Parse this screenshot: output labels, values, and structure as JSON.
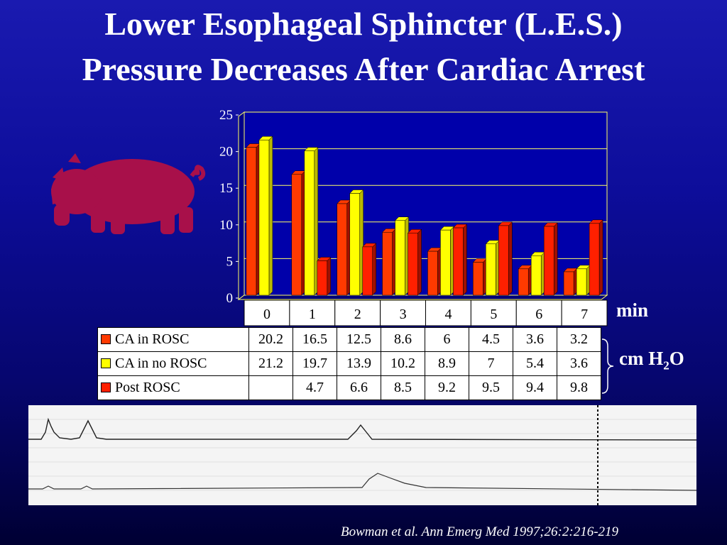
{
  "slide": {
    "title_line1": "Lower Esophageal Sphincter (L.E.S.)",
    "title_line2": "Pressure Decreases After Cardiac Arrest",
    "citation": "Bowman et al. Ann Emerg Med 1997;26:2:216-219",
    "unit_x": "min",
    "unit_y_prefix": "cm H",
    "unit_y_sub": "2",
    "unit_y_suffix": "O"
  },
  "chart_data": {
    "type": "bar",
    "categories": [
      "0",
      "1",
      "2",
      "3",
      "4",
      "5",
      "6",
      "7"
    ],
    "y_ticks": [
      "0",
      "5",
      "10",
      "15",
      "20",
      "25"
    ],
    "ylim": [
      0,
      25
    ],
    "grid": true,
    "legend": "table-below",
    "series": [
      {
        "name": "CA in ROSC",
        "color": "#ff3a00",
        "values": [
          20.2,
          16.5,
          12.5,
          8.6,
          6,
          4.5,
          3.6,
          3.2
        ]
      },
      {
        "name": "CA in no ROSC",
        "color": "#ffff00",
        "values": [
          21.2,
          19.7,
          13.9,
          10.2,
          8.9,
          7,
          5.4,
          3.6
        ]
      },
      {
        "name": "Post ROSC",
        "color": "#ff2000",
        "values": [
          null,
          4.7,
          6.6,
          8.5,
          9.2,
          9.5,
          9.4,
          9.8
        ]
      }
    ],
    "table_rows": [
      {
        "label": "CA in ROSC",
        "color": "#ff3a00",
        "cells": [
          "20.2",
          "16.5",
          "12.5",
          "8.6",
          "6",
          "4.5",
          "3.6",
          "3.2"
        ]
      },
      {
        "label": "CA in no ROSC",
        "color": "#ffff00",
        "cells": [
          "21.2",
          "19.7",
          "13.9",
          "10.2",
          "8.9",
          "7",
          "5.4",
          "3.6"
        ]
      },
      {
        "label": "Post ROSC",
        "color": "#ff2000",
        "cells": [
          "",
          "4.7",
          "6.6",
          "8.5",
          "9.2",
          "9.5",
          "9.4",
          "9.8"
        ]
      }
    ]
  },
  "colors": {
    "background": "#0d0d9a",
    "plot_background": "#0000aa",
    "grid": "#ffff66",
    "pig": "#a8104a"
  }
}
